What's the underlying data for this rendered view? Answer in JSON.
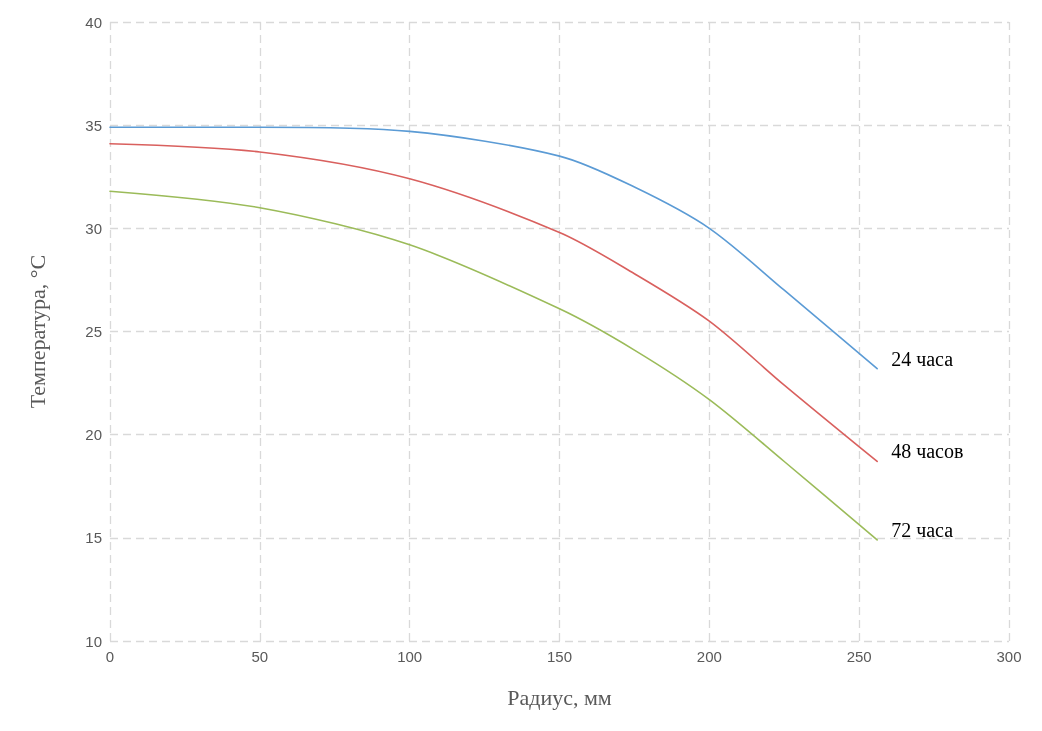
{
  "chart_data": {
    "type": "line",
    "xlabel": "Радиус, мм",
    "ylabel": "Температура, °С",
    "xlim": [
      0,
      300
    ],
    "xticks": [
      0,
      50,
      100,
      150,
      200,
      250,
      300
    ],
    "ylim": [
      10,
      40
    ],
    "yticks": [
      10,
      15,
      20,
      25,
      30,
      35,
      40
    ],
    "grid": true,
    "marker": "none",
    "line_style": "solid",
    "series": [
      {
        "name": "24 часа",
        "color": "#5b9bd5",
        "x": [
          0,
          50,
          100,
          150,
          175,
          200,
          225,
          256
        ],
        "values": [
          34.9,
          34.9,
          34.7,
          33.5,
          32.0,
          30.0,
          27.0,
          23.2
        ]
      },
      {
        "name": "48 часов",
        "color": "#d9605e",
        "x": [
          0,
          50,
          100,
          150,
          175,
          200,
          225,
          256
        ],
        "values": [
          34.1,
          33.7,
          32.4,
          29.8,
          27.8,
          25.5,
          22.4,
          18.7
        ]
      },
      {
        "name": "72 часа",
        "color": "#9bbb59",
        "x": [
          0,
          50,
          100,
          150,
          175,
          200,
          225,
          256
        ],
        "values": [
          31.8,
          31.0,
          29.2,
          26.1,
          24.1,
          21.7,
          18.7,
          14.9
        ]
      }
    ]
  }
}
